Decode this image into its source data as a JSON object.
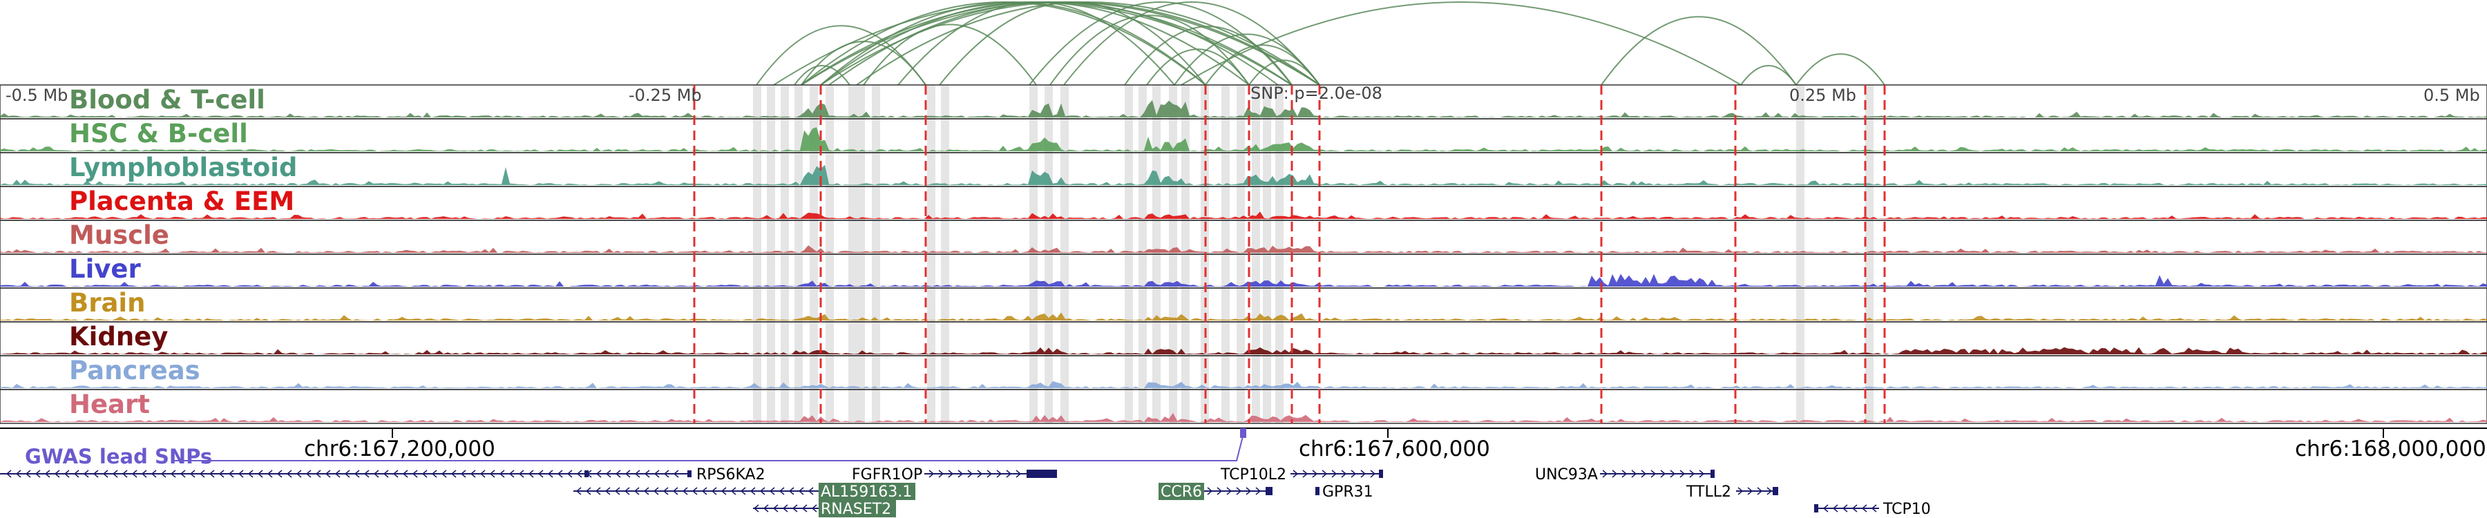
{
  "colors": {
    "arc": "#5a8a5a",
    "highlight_line": "#e03030",
    "region_band": "#d0d0d0",
    "gwas": "#6a5acd",
    "gene_line": "#1a1a6a",
    "gene_box": "#4f7f5a"
  },
  "scale": {
    "minus_half": "-0.5 Mb",
    "minus_quarter": "-0.25 Mb",
    "snp_label": "SNP: p=2.0e-08",
    "plus_quarter": "0.25 Mb",
    "plus_half": "0.5 Mb"
  },
  "tracks": [
    {
      "name": "Blood & T-cell",
      "color": "#5b8c5b"
    },
    {
      "name": "HSC & B-cell",
      "color": "#5aa05a"
    },
    {
      "name": "Lymphoblastoid",
      "color": "#4a9a86"
    },
    {
      "name": "Placenta & EEM",
      "color": "#dd1111"
    },
    {
      "name": "Muscle",
      "color": "#c05a5a"
    },
    {
      "name": "Liver",
      "color": "#4444cc"
    },
    {
      "name": "Brain",
      "color": "#c09020"
    },
    {
      "name": "Kidney",
      "color": "#6a0a0a"
    },
    {
      "name": "Pancreas",
      "color": "#88a8d8"
    },
    {
      "name": "Heart",
      "color": "#d06a7a"
    }
  ],
  "coordinates": {
    "left": "chr6:167,200,000",
    "mid": "chr6:167,600,000",
    "right": "chr6:168,000,000"
  },
  "gwas_label": "GWAS lead SNPs",
  "genes": {
    "rps6ka2": "RPS6KA2",
    "fgfr1op": "FGFR1OP",
    "al159163": "AL159163.1",
    "rnaset2": "RNASET2",
    "ccr6": "CCR6",
    "tcp10l2": "TCP10L2",
    "gpr31": "GPR31",
    "unc93a": "UNC93A",
    "ttll2": "TTLL2",
    "tcp10": "TCP10"
  }
}
